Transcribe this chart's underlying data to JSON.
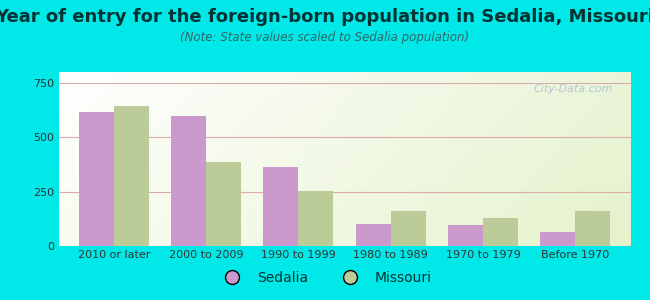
{
  "title": "Year of entry for the foreign-born population in Sedalia, Missouri",
  "subtitle": "(Note: State values scaled to Sedalia population)",
  "categories": [
    "2010 or later",
    "2000 to 2009",
    "1990 to 1999",
    "1980 to 1989",
    "1970 to 1979",
    "Before 1970"
  ],
  "sedalia_values": [
    615,
    600,
    365,
    100,
    95,
    65
  ],
  "missouri_values": [
    645,
    385,
    255,
    160,
    130,
    160
  ],
  "sedalia_color": "#cc99cc",
  "missouri_color": "#bbcc99",
  "bg_outer": "#00e8e8",
  "ylim": [
    0,
    800
  ],
  "yticks": [
    0,
    250,
    500,
    750
  ],
  "bar_width": 0.38,
  "title_fontsize": 13,
  "subtitle_fontsize": 8.5,
  "tick_fontsize": 8,
  "legend_fontsize": 10,
  "title_color": "#003333",
  "subtitle_color": "#336666",
  "watermark": "City-Data.com"
}
